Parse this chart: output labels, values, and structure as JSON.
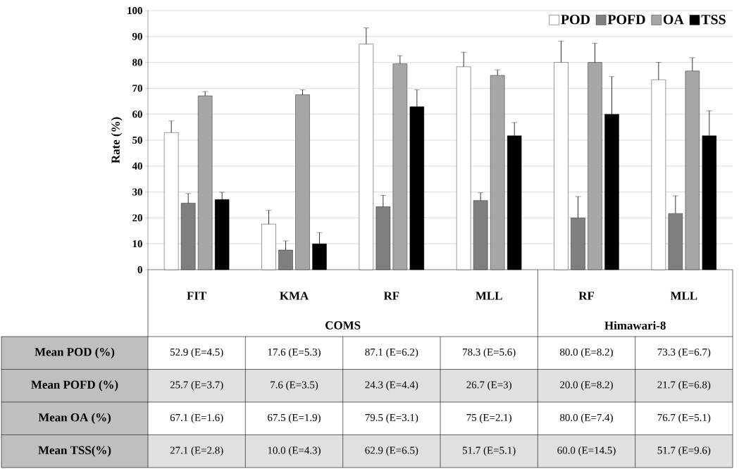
{
  "chart_data": {
    "type": "bar",
    "ylabel": "Rate (%)",
    "categories": [
      "FIT",
      "KMA",
      "RF",
      "MLL",
      "RF",
      "MLL"
    ],
    "ylim": [
      0,
      100
    ],
    "yticks": [
      0,
      10,
      20,
      30,
      40,
      50,
      60,
      70,
      80,
      90,
      100
    ],
    "grid": "y",
    "legend": "top right",
    "series": [
      {
        "name": "POD",
        "color": "#ffffff",
        "values": [
          52.9,
          17.6,
          87.1,
          78.3,
          80.0,
          73.3
        ],
        "errors": [
          [
            52.9,
            57.4
          ],
          [
            17.6,
            22.9
          ],
          [
            87.1,
            93.3
          ],
          [
            78.3,
            83.9
          ],
          [
            80.0,
            88.2
          ],
          [
            73.3,
            80.0
          ]
        ],
        "value_labels": [
          "52.9 (E=4.5)",
          "17.6 (E=5.3)",
          "87.1 (E=6.2)",
          "78.3 (E=5.6)",
          "80.0 (E=8.2)",
          "73.3 (E=6.7)"
        ]
      },
      {
        "name": "POFD",
        "color": "#7f7f7f",
        "values": [
          25.7,
          7.6,
          24.3,
          26.7,
          20.0,
          21.7
        ],
        "errors": [
          [
            25.7,
            29.4
          ],
          [
            7.6,
            11.1
          ],
          [
            24.3,
            28.7
          ],
          [
            26.7,
            29.7
          ],
          [
            20.0,
            28.2
          ],
          [
            21.7,
            28.5
          ]
        ],
        "value_labels": [
          "25.7 (E=3.7)",
          "7.6 (E=3.5)",
          "24.3 (E=4.4)",
          "26.7 (E=3)",
          "20.0 (E=8.2)",
          "21.7 (E=6.8)"
        ]
      },
      {
        "name": "OA",
        "color": "#a6a6a6",
        "values": [
          67.1,
          67.5,
          79.5,
          75,
          80.0,
          76.7
        ],
        "errors": [
          [
            67.1,
            68.7
          ],
          [
            67.5,
            69.4
          ],
          [
            79.5,
            82.6
          ],
          [
            75,
            77.1
          ],
          [
            80.0,
            87.4
          ],
          [
            76.7,
            81.8
          ]
        ],
        "value_labels": [
          "67.1 (E=1.6)",
          "67.5 (E=1.9)",
          "79.5 (E=3.1)",
          "75 (E=2.1)",
          "80.0 (E=7.4)",
          "76.7 (E=5.1)"
        ]
      },
      {
        "name": "TSS",
        "color": "#000000",
        "values": [
          27.1,
          10.0,
          62.9,
          51.7,
          60.0,
          51.7
        ],
        "errors": [
          [
            27.1,
            29.9
          ],
          [
            10.0,
            14.3
          ],
          [
            62.9,
            69.4
          ],
          [
            51.7,
            56.8
          ],
          [
            60.0,
            74.5
          ],
          [
            51.7,
            61.3
          ]
        ],
        "value_labels": [
          "27.1 (E=2.8)",
          "10.0 (E=4.3)",
          "62.9 (E=6.5)",
          "51.7 (E=5.1)",
          "60.0 (E=14.5)",
          "51.7 (E=9.6)"
        ]
      }
    ],
    "annotations": [
      "Mean POD (%)",
      "Mean POFD (%)",
      "Mean OA (%)",
      "Mean TSS(%)",
      "COMS",
      "Himawari-8"
    ]
  }
}
